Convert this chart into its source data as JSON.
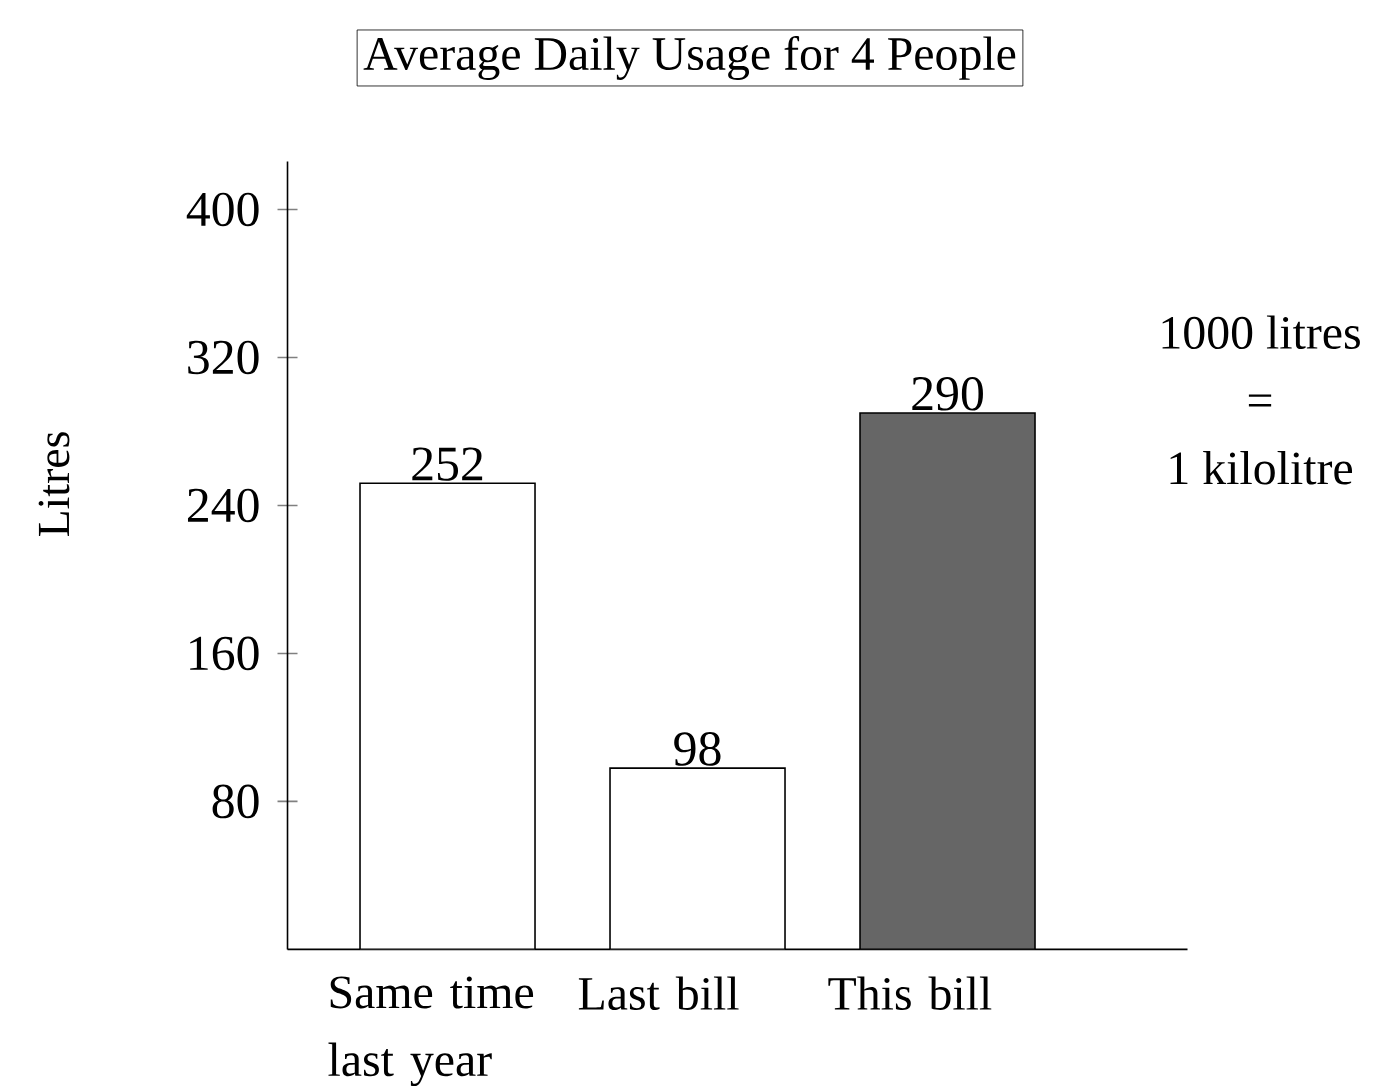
{
  "chart_data": {
    "type": "bar",
    "title": "Average Daily Usage for 4 People",
    "ylabel": "Litres",
    "categories": [
      "Same time last year",
      "Last bill",
      "This bill"
    ],
    "values": [
      252,
      98,
      290
    ],
    "colors": [
      "#ffffff",
      "#ffffff",
      "#666666"
    ],
    "ylim": [
      0,
      426
    ],
    "yticks": [
      80,
      160,
      240,
      320,
      400
    ],
    "data_labels": true,
    "annotations": [
      "1000 litres",
      "=",
      "1 kilolitre"
    ]
  }
}
